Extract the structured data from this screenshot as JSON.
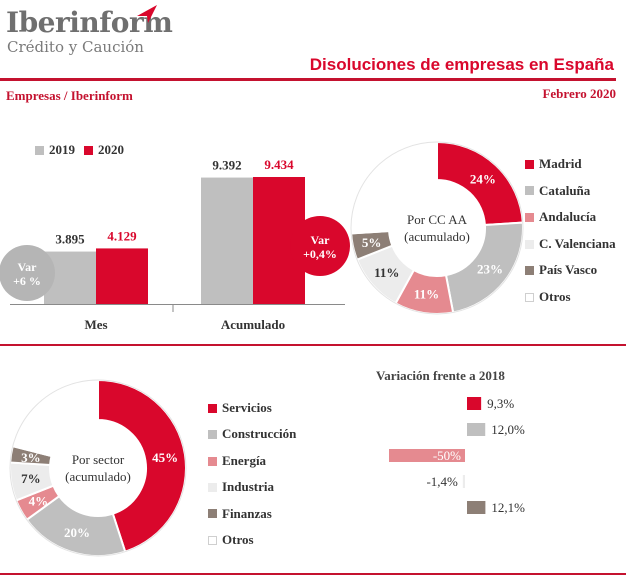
{
  "header": {
    "brand": "Iberinform",
    "brand_sub": "Crédito y Caución",
    "title": "Disoluciones de empresas en España",
    "left_subtitle": "Empresas / Iberinform",
    "right_subtitle": "Febrero 2020"
  },
  "colors": {
    "red": "#d9072c",
    "gray": "#bfbfbf",
    "pink": "#e58a90",
    "light": "#ececec",
    "brown": "#8d7f76",
    "white": "#ffffff",
    "rule": "#c4122f"
  },
  "badges": {
    "mes": [
      "Var",
      "+6 %"
    ],
    "acumulado": [
      "Var",
      "+0,4%"
    ]
  },
  "chart_data": [
    {
      "type": "bar",
      "categories": [
        "Mes",
        "Acumulado"
      ],
      "series": [
        {
          "name": "2019",
          "values": [
            3895,
            9392
          ],
          "labels": [
            "3.895",
            "9.392"
          ],
          "color": "#bfbfbf"
        },
        {
          "name": "2020",
          "values": [
            4129,
            9434
          ],
          "labels": [
            "4.129",
            "9.434"
          ],
          "color": "#d9072c"
        }
      ],
      "ylim": [
        0,
        9434
      ]
    },
    {
      "type": "pie",
      "center_label": [
        "Por CC AA",
        "(acumulado)"
      ],
      "slices": [
        {
          "name": "Madrid",
          "value": 24,
          "label": "24%",
          "color": "#d9072c"
        },
        {
          "name": "Cataluña",
          "value": 23,
          "label": "23%",
          "color": "#bfbfbf"
        },
        {
          "name": "Andalucía",
          "value": 11,
          "label": "11%",
          "color": "#e58a90"
        },
        {
          "name": "C. Valenciana",
          "value": 11,
          "label": "11%",
          "color": "#ececec"
        },
        {
          "name": "País Vasco",
          "value": 5,
          "label": "5%",
          "color": "#8d7f76"
        },
        {
          "name": "Otros",
          "value": 26,
          "label": "",
          "color": "#ffffff"
        }
      ]
    },
    {
      "type": "pie",
      "center_label": [
        "Por sector",
        "(acumulado)"
      ],
      "slices": [
        {
          "name": "Servicios",
          "value": 45,
          "label": "45%",
          "color": "#d9072c"
        },
        {
          "name": "Construcción",
          "value": 20,
          "label": "20%",
          "color": "#bfbfbf"
        },
        {
          "name": "Energía",
          "value": 4,
          "label": "4%",
          "color": "#e58a90"
        },
        {
          "name": "Industria",
          "value": 7,
          "label": "7%",
          "color": "#ececec"
        },
        {
          "name": "Finanzas",
          "value": 3,
          "label": "3%",
          "color": "#8d7f76"
        },
        {
          "name": "Otros",
          "value": 21,
          "label": "",
          "color": "#ffffff"
        }
      ]
    },
    {
      "type": "bar",
      "orientation": "horizontal",
      "title": "Variación frente a 2018",
      "categories": [
        "Servicios",
        "Construcción",
        "Energía",
        "Industria",
        "Finanzas"
      ],
      "values": [
        9.3,
        12.0,
        -50,
        -1.4,
        12.1
      ],
      "labels": [
        "9,3%",
        "12,0%",
        "-50%",
        "-1,4%",
        "12,1%"
      ],
      "colors": [
        "#d9072c",
        "#bfbfbf",
        "#e58a90",
        "#ececec",
        "#8d7f76"
      ]
    }
  ]
}
